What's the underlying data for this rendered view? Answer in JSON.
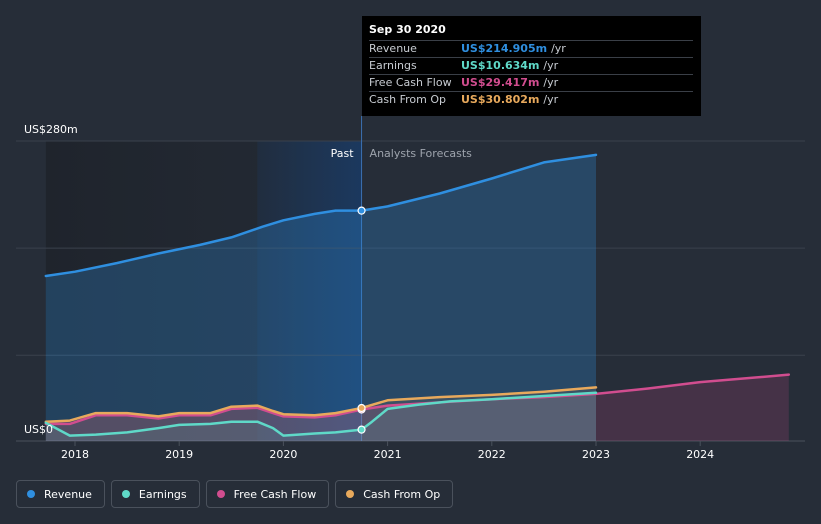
{
  "chart_data": {
    "type": "line",
    "title": "",
    "xlabel": "",
    "ylabel": "",
    "xlim": [
      2017.5,
      2024.85
    ],
    "ylim": [
      0,
      280
    ],
    "y_tick_labels": [
      {
        "value": 280,
        "label": "US$280m"
      },
      {
        "value": 0,
        "label": "US$0"
      }
    ],
    "x_ticks": [
      2018,
      2019,
      2020,
      2021,
      2022,
      2023,
      2024
    ],
    "x_tick_labels": [
      "2018",
      "2019",
      "2020",
      "2021",
      "2022",
      "2023",
      "2024"
    ],
    "past_label": "Past",
    "forecast_label": "Analysts Forecasts",
    "past_end": 2020.75,
    "grid": true,
    "legend_position": "bottom-left",
    "series": [
      {
        "name": "Revenue",
        "color": "#2f8fe0",
        "x": [
          2017.72,
          2018.0,
          2018.4,
          2018.8,
          2019.2,
          2019.5,
          2019.8,
          2020.0,
          2020.3,
          2020.5,
          2020.75,
          2021.0,
          2021.5,
          2022.0,
          2022.5,
          2023.0
        ],
        "y": [
          154,
          158,
          166,
          175,
          183,
          190,
          200,
          206,
          212,
          215,
          215,
          219,
          231,
          245,
          260,
          267
        ]
      },
      {
        "name": "Earnings",
        "color": "#5fd9c8",
        "x": [
          2017.72,
          2017.95,
          2018.2,
          2018.5,
          2018.8,
          2019.0,
          2019.3,
          2019.5,
          2019.75,
          2019.9,
          2020.0,
          2020.3,
          2020.5,
          2020.75,
          2020.85,
          2021.0,
          2021.3,
          2021.6,
          2022.0,
          2022.5,
          2023.0
        ],
        "y": [
          17,
          5,
          6,
          8,
          12,
          15,
          16,
          18,
          18,
          12,
          5,
          7,
          8,
          10.6,
          18,
          30,
          34,
          37,
          39,
          42,
          45
        ]
      },
      {
        "name": "Free Cash Flow",
        "color": "#d14d8f",
        "x": [
          2017.72,
          2017.95,
          2018.2,
          2018.5,
          2018.8,
          2019.0,
          2019.3,
          2019.5,
          2019.75,
          2019.9,
          2020.0,
          2020.3,
          2020.5,
          2020.75,
          2021.0,
          2021.5,
          2022.0,
          2022.5,
          2023.0,
          2023.5,
          2024.0,
          2024.5,
          2024.85
        ],
        "y": [
          16,
          16,
          24,
          24,
          21,
          24,
          24,
          30,
          31,
          26,
          23,
          22,
          24,
          29.4,
          33,
          36,
          39,
          41,
          44,
          49,
          55,
          59,
          62
        ]
      },
      {
        "name": "Cash From Op",
        "color": "#e8a95c",
        "x": [
          2017.72,
          2017.95,
          2018.2,
          2018.5,
          2018.8,
          2019.0,
          2019.3,
          2019.5,
          2019.75,
          2019.9,
          2020.0,
          2020.3,
          2020.5,
          2020.75,
          2021.0,
          2021.5,
          2022.0,
          2022.5,
          2023.0
        ],
        "y": [
          18,
          19,
          26,
          26,
          23,
          26,
          26,
          32,
          33,
          28,
          25,
          24,
          26,
          30.8,
          38,
          41,
          43,
          46,
          50
        ]
      }
    ]
  },
  "tooltip": {
    "date": "Sep 30 2020",
    "rows": [
      {
        "name": "Revenue",
        "value": "US$214.905m",
        "unit": "/yr",
        "color": "#2f8fe0"
      },
      {
        "name": "Earnings",
        "value": "US$10.634m",
        "unit": "/yr",
        "color": "#5fd9c8"
      },
      {
        "name": "Free Cash Flow",
        "value": "US$29.417m",
        "unit": "/yr",
        "color": "#d14d8f"
      },
      {
        "name": "Cash From Op",
        "value": "US$30.802m",
        "unit": "/yr",
        "color": "#e8a95c"
      }
    ]
  },
  "legend": [
    {
      "label": "Revenue",
      "color": "#2f8fe0"
    },
    {
      "label": "Earnings",
      "color": "#5fd9c8"
    },
    {
      "label": "Free Cash Flow",
      "color": "#d14d8f"
    },
    {
      "label": "Cash From Op",
      "color": "#e8a95c"
    }
  ]
}
